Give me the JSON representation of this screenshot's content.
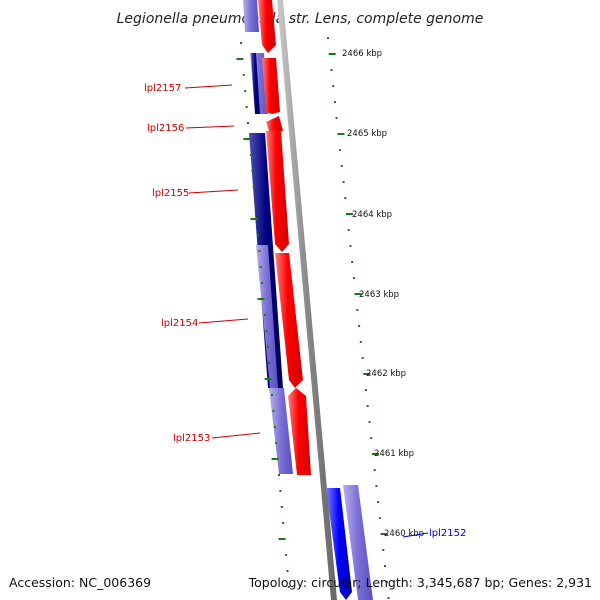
{
  "title": "Legionella pneumophila str. Lens, complete genome",
  "footer": {
    "accession": "Accession: NC_006369",
    "summary": "Topology: circular; Length: 3,345,687 bp; Genes: 2,931"
  },
  "ruler_labels": [
    "2466 kbp",
    "2465 kbp",
    "2464 kbp",
    "2463 kbp",
    "2462 kbp",
    "2461 kbp",
    "2460 kbp"
  ],
  "genes": [
    {
      "label": "lpl2157",
      "color": "#cc0000"
    },
    {
      "label": "lpl2156",
      "color": "#cc0000"
    },
    {
      "label": "lpl2155",
      "color": "#cc0000"
    },
    {
      "label": "lpl2154",
      "color": "#cc0000"
    },
    {
      "label": "lpl2153",
      "color": "#cc0000"
    },
    {
      "label": "lpl2152",
      "color": "#0000cc"
    }
  ],
  "colors": {
    "forward_cds": "#ff0000",
    "reverse_cds": "#0000ff",
    "dark_blue": "#000080",
    "light_blue": "#7b6fd6",
    "backbone": "#888888",
    "ticks": "#1a7a1a"
  }
}
